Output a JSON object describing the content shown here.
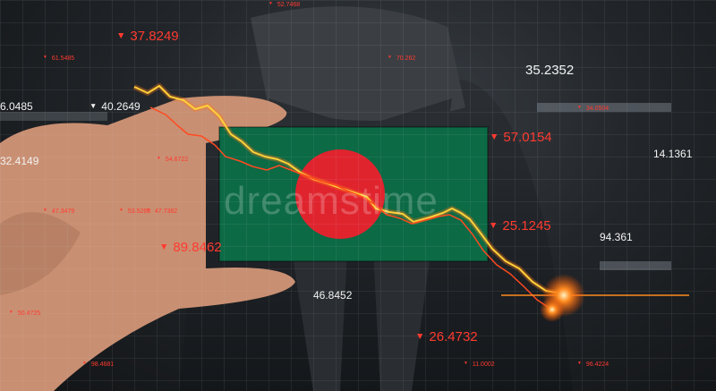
{
  "watermark": "dreamstime",
  "labels": {
    "l1": "37.8249",
    "l2": "52.7468",
    "l3": "61.5485",
    "l4": "6.0485",
    "l5": "40.2649",
    "l6": "32.4149",
    "l7": "70.262",
    "l8": "35.2352",
    "l9": "34.0504",
    "l10": "57.0154",
    "l11": "14.1361",
    "l12": "54.6722",
    "l13": "47.3479",
    "l14": "53.5268",
    "l15": "47.7382",
    "l16": "89.8462",
    "l17": "25.1245",
    "l18": "94.361",
    "l19": "46.8452",
    "l20": "50.4725",
    "l21": "26.4732",
    "l22": "98.4681",
    "l23": "11.0002",
    "l24": "96.4224"
  },
  "colors": {
    "line": "#ff6a1a",
    "flag_green": "#0c6a45",
    "flag_red": "#e0242e",
    "label_red": "#ff3a30"
  }
}
